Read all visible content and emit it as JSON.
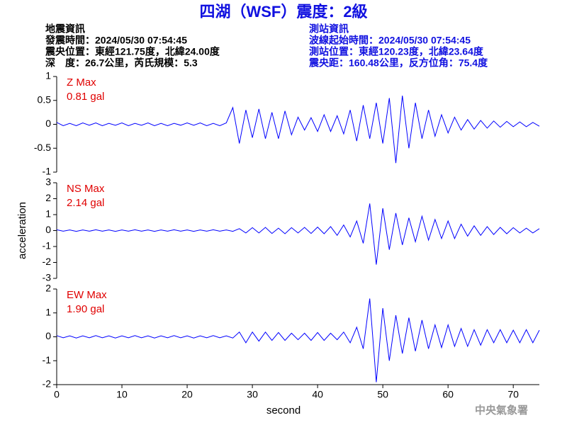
{
  "header": {
    "title": "四湖（WSF）震度：2級",
    "info_left": [
      "地震資訊",
      "發震時間：2024/05/30 07:54:45",
      "震央位置：東經121.75度，北緯24.00度",
      "深　度：26.7公里，芮氏規模：5.3"
    ],
    "info_right": [
      "測站資訊",
      "波線起始時間：2024/05/30 07:54:45",
      "測站位置：東經120.23度，北緯23.64度",
      "震央距：160.48公里，反方位角：75.4度"
    ],
    "source": "中央氣象署"
  },
  "chart_data": [
    {
      "type": "line",
      "annotation": [
        "Z Max",
        "0.81 gal"
      ],
      "xlim": [
        0,
        74
      ],
      "ylim": [
        -1,
        1
      ],
      "yticks": [
        1,
        0.5,
        0,
        -0.5,
        -1
      ],
      "x": [
        0,
        1,
        2,
        3,
        4,
        5,
        6,
        7,
        8,
        9,
        10,
        11,
        12,
        13,
        14,
        15,
        16,
        17,
        18,
        19,
        20,
        21,
        22,
        23,
        24,
        25,
        26,
        27,
        28,
        29,
        30,
        31,
        32,
        33,
        34,
        35,
        36,
        37,
        38,
        39,
        40,
        41,
        42,
        43,
        44,
        45,
        46,
        47,
        48,
        49,
        50,
        51,
        52,
        53,
        54,
        55,
        56,
        57,
        58,
        59,
        60,
        61,
        62,
        63,
        64,
        65,
        66,
        67,
        68,
        69,
        70,
        71,
        72,
        73,
        74
      ],
      "series": [
        {
          "name": "Z",
          "color": "#0000ff",
          "values": [
            0.04,
            -0.03,
            0.02,
            -0.03,
            0.03,
            -0.02,
            0.03,
            -0.03,
            0.02,
            -0.02,
            0.03,
            -0.03,
            0.02,
            -0.02,
            0.03,
            -0.03,
            0.02,
            -0.03,
            0.02,
            -0.02,
            0.03,
            -0.02,
            0.03,
            -0.03,
            0.02,
            -0.03,
            0.03,
            0.35,
            -0.4,
            0.3,
            -0.28,
            0.32,
            -0.3,
            0.25,
            -0.3,
            0.28,
            -0.22,
            0.15,
            -0.12,
            0.14,
            -0.15,
            0.2,
            -0.15,
            0.18,
            -0.2,
            0.3,
            -0.35,
            0.4,
            -0.3,
            0.45,
            -0.4,
            0.55,
            -0.81,
            0.6,
            -0.5,
            0.45,
            -0.3,
            0.3,
            -0.25,
            0.2,
            -0.18,
            0.15,
            -0.12,
            0.1,
            -0.1,
            0.08,
            -0.08,
            0.07,
            -0.06,
            0.06,
            -0.05,
            0.05,
            -0.05,
            0.04,
            -0.04
          ]
        }
      ]
    },
    {
      "type": "line",
      "annotation": [
        "NS Max",
        "2.14 gal"
      ],
      "ylabel": "acceleration",
      "xlim": [
        0,
        74
      ],
      "ylim": [
        -3,
        3
      ],
      "yticks": [
        3,
        2,
        1,
        0,
        -1,
        -2,
        -3
      ],
      "x": [
        0,
        1,
        2,
        3,
        4,
        5,
        6,
        7,
        8,
        9,
        10,
        11,
        12,
        13,
        14,
        15,
        16,
        17,
        18,
        19,
        20,
        21,
        22,
        23,
        24,
        25,
        26,
        27,
        28,
        29,
        30,
        31,
        32,
        33,
        34,
        35,
        36,
        37,
        38,
        39,
        40,
        41,
        42,
        43,
        44,
        45,
        46,
        47,
        48,
        49,
        50,
        51,
        52,
        53,
        54,
        55,
        56,
        57,
        58,
        59,
        60,
        61,
        62,
        63,
        64,
        65,
        66,
        67,
        68,
        69,
        70,
        71,
        72,
        73,
        74
      ],
      "series": [
        {
          "name": "NS",
          "color": "#0000ff",
          "values": [
            0.05,
            -0.04,
            0.04,
            -0.05,
            0.04,
            -0.04,
            0.05,
            -0.04,
            0.04,
            -0.05,
            0.04,
            -0.04,
            0.05,
            -0.04,
            0.04,
            -0.05,
            0.04,
            -0.04,
            0.05,
            -0.04,
            0.04,
            -0.05,
            0.04,
            -0.04,
            0.05,
            -0.04,
            0.04,
            -0.05,
            0.12,
            -0.15,
            0.18,
            -0.15,
            0.2,
            -0.18,
            0.15,
            -0.2,
            0.18,
            -0.15,
            0.2,
            -0.18,
            0.22,
            -0.2,
            0.25,
            -0.3,
            0.35,
            -0.4,
            0.6,
            -0.8,
            1.7,
            -2.14,
            1.4,
            -1.2,
            1.1,
            -0.9,
            0.8,
            -0.7,
            0.9,
            -0.6,
            0.7,
            -0.5,
            0.6,
            -0.5,
            0.4,
            -0.35,
            0.3,
            -0.3,
            0.25,
            -0.25,
            0.2,
            -0.2,
            0.18,
            -0.15,
            0.15,
            -0.15,
            0.12
          ]
        }
      ]
    },
    {
      "type": "line",
      "annotation": [
        "EW Max",
        "1.90 gal"
      ],
      "xlabel": "second",
      "xlim": [
        0,
        74
      ],
      "xticks": [
        0,
        10,
        20,
        30,
        40,
        50,
        60,
        70
      ],
      "ylim": [
        -2,
        2
      ],
      "yticks": [
        2,
        1,
        0,
        -1,
        -2
      ],
      "x": [
        0,
        1,
        2,
        3,
        4,
        5,
        6,
        7,
        8,
        9,
        10,
        11,
        12,
        13,
        14,
        15,
        16,
        17,
        18,
        19,
        20,
        21,
        22,
        23,
        24,
        25,
        26,
        27,
        28,
        29,
        30,
        31,
        32,
        33,
        34,
        35,
        36,
        37,
        38,
        39,
        40,
        41,
        42,
        43,
        44,
        45,
        46,
        47,
        48,
        49,
        50,
        51,
        52,
        53,
        54,
        55,
        56,
        57,
        58,
        59,
        60,
        61,
        62,
        63,
        64,
        65,
        66,
        67,
        68,
        69,
        70,
        71,
        72,
        73,
        74
      ],
      "series": [
        {
          "name": "EW",
          "color": "#0000ff",
          "values": [
            0.05,
            -0.04,
            0.04,
            -0.05,
            0.04,
            -0.04,
            0.05,
            -0.04,
            0.04,
            -0.05,
            0.04,
            -0.04,
            0.05,
            -0.04,
            0.04,
            -0.05,
            0.04,
            -0.04,
            0.05,
            -0.04,
            0.04,
            -0.05,
            0.04,
            -0.04,
            0.05,
            -0.04,
            0.04,
            -0.05,
            0.2,
            -0.25,
            0.2,
            -0.18,
            0.2,
            -0.15,
            0.18,
            -0.15,
            0.15,
            -0.12,
            0.15,
            -0.15,
            0.18,
            -0.15,
            0.15,
            -0.12,
            0.2,
            -0.25,
            0.4,
            -0.5,
            1.6,
            -1.9,
            1.2,
            -1.0,
            0.9,
            -0.7,
            0.8,
            -0.6,
            0.7,
            -0.5,
            0.5,
            -0.45,
            0.5,
            -0.4,
            0.35,
            -0.4,
            0.3,
            -0.35,
            0.3,
            -0.25,
            0.3,
            -0.25,
            0.28,
            -0.25,
            0.3,
            -0.25,
            0.28
          ]
        }
      ]
    }
  ]
}
